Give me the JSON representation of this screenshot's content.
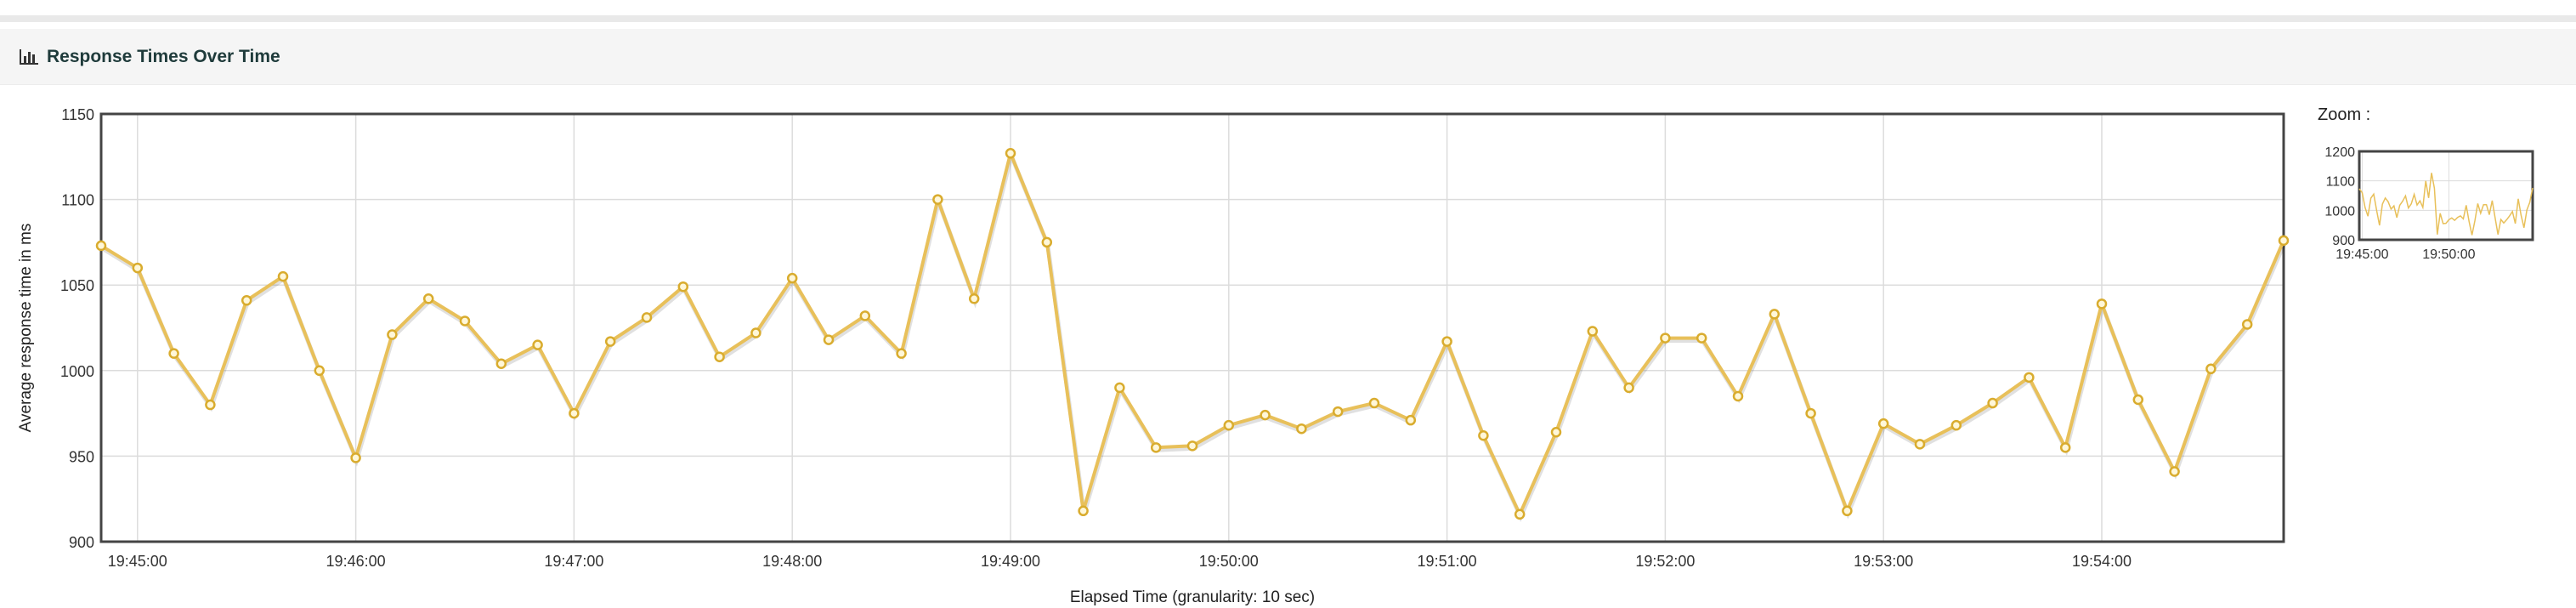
{
  "panel": {
    "title": "Response Times Over Time",
    "icon": "bar-chart-icon"
  },
  "zoom": {
    "label": "Zoom :",
    "y_ticks": [
      900,
      1000,
      1100,
      1200
    ],
    "ylim": [
      900,
      1200
    ],
    "x_ticks": [
      "19:45:00",
      "19:50:00"
    ]
  },
  "chart_data": {
    "type": "line",
    "title": "",
    "xlabel": "Elapsed Time (granularity: 10 sec)",
    "ylabel": "Average response time in ms",
    "ylim": [
      900,
      1150
    ],
    "y_ticks": [
      900,
      950,
      1000,
      1050,
      1100,
      1150
    ],
    "x_ticks": [
      "19:45:00",
      "19:46:00",
      "19:47:00",
      "19:48:00",
      "19:49:00",
      "19:50:00",
      "19:51:00",
      "19:52:00",
      "19:53:00",
      "19:54:00"
    ],
    "grid": true,
    "series": [
      {
        "color": "#e8c05a",
        "x": [
          "19:44:50",
          "19:45:00",
          "19:45:10",
          "19:45:20",
          "19:45:30",
          "19:45:40",
          "19:45:50",
          "19:46:00",
          "19:46:10",
          "19:46:20",
          "19:46:30",
          "19:46:40",
          "19:46:50",
          "19:47:00",
          "19:47:10",
          "19:47:20",
          "19:47:30",
          "19:47:40",
          "19:47:50",
          "19:48:00",
          "19:48:10",
          "19:48:20",
          "19:48:30",
          "19:48:40",
          "19:48:50",
          "19:49:00",
          "19:49:10",
          "19:49:20",
          "19:49:30",
          "19:49:40",
          "19:49:50",
          "19:50:00",
          "19:50:10",
          "19:50:20",
          "19:50:30",
          "19:50:40",
          "19:50:50",
          "19:51:00",
          "19:51:10",
          "19:51:20",
          "19:51:30",
          "19:51:40",
          "19:51:50",
          "19:52:00",
          "19:52:10",
          "19:52:20",
          "19:52:30",
          "19:52:40",
          "19:52:50",
          "19:53:00",
          "19:53:10",
          "19:53:20",
          "19:53:30",
          "19:53:40",
          "19:53:50",
          "19:54:00",
          "19:54:10",
          "19:54:20",
          "19:54:30",
          "19:54:40",
          "19:54:50"
        ],
        "values": [
          1073,
          1060,
          1010,
          980,
          1041,
          1055,
          1000,
          949,
          1021,
          1042,
          1029,
          1004,
          1015,
          975,
          1017,
          1031,
          1049,
          1008,
          1022,
          1054,
          1018,
          1032,
          1010,
          1100,
          1042,
          1127,
          1075,
          918,
          990,
          955,
          956,
          968,
          974,
          966,
          976,
          981,
          971,
          1017,
          962,
          916,
          964,
          1023,
          990,
          1019,
          1019,
          985,
          1033,
          975,
          918,
          969,
          957,
          968,
          981,
          996,
          955,
          1039,
          983,
          941,
          1001,
          1027,
          1076
        ]
      }
    ]
  }
}
